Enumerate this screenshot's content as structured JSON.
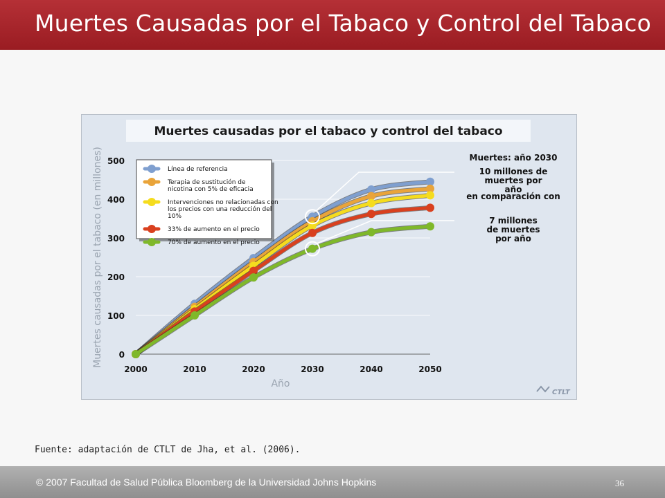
{
  "slide": {
    "title": "Muertes Causadas por el Tabaco y Control del Tabaco",
    "source": "Fuente: adaptación de CTLT de Jha, et al. (2006).",
    "copyright": "2007 Facultad de Salud Pública Bloomberg de la Universidad Johns Hopkins",
    "copyright_symbol": "©",
    "page_number": "36"
  },
  "colors": {
    "title_bar": "#a8252b",
    "chart_bg": "#dfe6ef",
    "footer": "#9e9e9e"
  },
  "chart_data": {
    "type": "line",
    "title": "Muertes causadas por el tabaco y control del tabaco",
    "xlabel": "Año",
    "ylabel": "Muertes causadas por el tabaco (en millones)",
    "x": [
      2000,
      2010,
      2020,
      2030,
      2040,
      2050
    ],
    "xlim": [
      2000,
      2050
    ],
    "ylim": [
      0,
      500
    ],
    "yticks": [
      0,
      100,
      200,
      300,
      400,
      500
    ],
    "grid": true,
    "legend_position": "top-left",
    "series": [
      {
        "name": "Línea de referencia",
        "color": "#7f9fcf",
        "values": [
          0,
          130,
          248,
          355,
          425,
          445
        ]
      },
      {
        "name": "Terapia de sustitución de nicotina con 5% de eficacia",
        "color": "#e9a43a",
        "values": [
          0,
          122,
          238,
          343,
          408,
          427
        ]
      },
      {
        "name": "Intervenciones no relacionadas con los precios con una reducción del 10%",
        "color": "#f5dc1e",
        "values": [
          0,
          116,
          228,
          332,
          390,
          410
        ]
      },
      {
        "name": "33% de aumento en el precio",
        "color": "#d9401f",
        "values": [
          0,
          110,
          215,
          313,
          362,
          378
        ]
      },
      {
        "name": "70% de aumento en el precio",
        "color": "#7fb82a",
        "values": [
          0,
          100,
          198,
          272,
          315,
          330
        ]
      }
    ],
    "annotations": {
      "heading": "Muertes: año 2030",
      "upper": "10 millones de muertes por año",
      "middle": "en comparación con",
      "lower": "7 millones de muertes por año"
    },
    "logo": "CTLT"
  }
}
